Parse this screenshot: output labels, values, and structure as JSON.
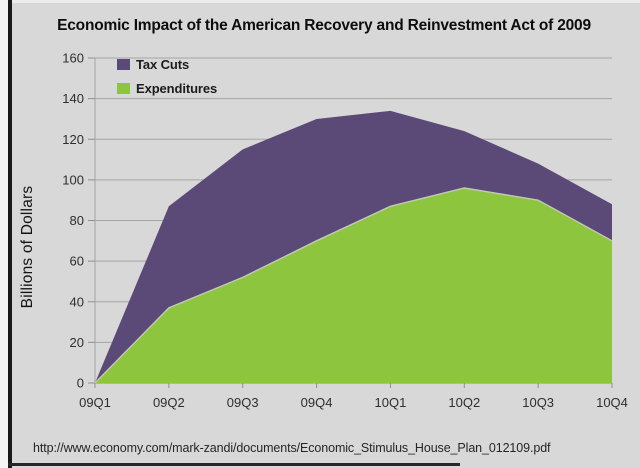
{
  "page": {
    "source_url": "http://www.economy.com/mark-zandi/documents/Economic_Stimulus_House_Plan_012109.pdf"
  },
  "chart_data": {
    "type": "area",
    "stacked": true,
    "title": "Economic Impact of the American Recovery and Reinvestment Act of 2009",
    "xlabel": "",
    "ylabel": "Billions of Dollars",
    "categories": [
      "09Q1",
      "09Q2",
      "09Q3",
      "09Q4",
      "10Q1",
      "10Q2",
      "10Q3",
      "10Q4"
    ],
    "series": [
      {
        "name": "Tax Cuts",
        "color": "#5b4a78",
        "values": [
          0,
          50,
          63,
          60,
          47,
          28,
          18,
          18
        ]
      },
      {
        "name": "Expenditures",
        "color": "#8dc63e",
        "values": [
          0,
          37,
          52,
          70,
          87,
          96,
          90,
          70
        ]
      }
    ],
    "stack_note": "Expenditures on bottom, Tax Cuts stacked on top",
    "stacked_totals": [
      0,
      87,
      115,
      130,
      134,
      124,
      108,
      88
    ],
    "ylim": [
      0,
      160
    ],
    "yticks": [
      0,
      20,
      40,
      60,
      80,
      100,
      120,
      140,
      160
    ],
    "grid": true,
    "legend_position": "top-left-inside",
    "colors": {
      "background": "#d8d8d8",
      "grid": "#a4a4a4",
      "axis": "#8f8f8f",
      "green_edge": "#c2cbb2",
      "tax_cuts": "#5b4a78",
      "expenditures": "#8dc63e"
    }
  }
}
